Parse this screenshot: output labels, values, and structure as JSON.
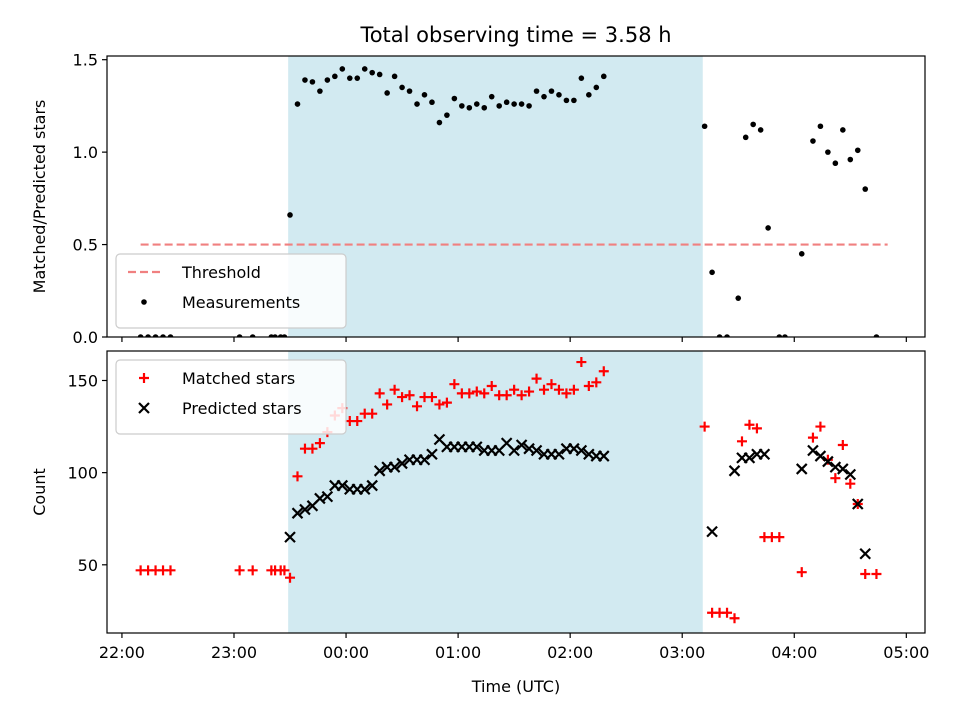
{
  "figure_title": "Total observing time = 3.58 h",
  "chart_data": [
    {
      "type": "scatter",
      "panel": "top",
      "title": "Total observing time = 3.58 h",
      "xlabel": "",
      "ylabel": "Matched/Predicted stars",
      "xlim": [
        "21:52",
        "05:10"
      ],
      "ylim": [
        0,
        1.52
      ],
      "yticks": [
        0.0,
        0.5,
        1.0,
        1.5
      ],
      "ytick_labels": [
        "0.0",
        "0.5",
        "1.0",
        "1.5"
      ],
      "xticks": [
        "22:00",
        "23:00",
        "00:00",
        "01:00",
        "02:00",
        "03:00",
        "04:00",
        "05:00"
      ],
      "shaded_interval": {
        "start": "23:29",
        "end": "03:11",
        "color": "#add8e6"
      },
      "threshold": {
        "name": "Threshold",
        "value": 0.5,
        "x_start": "22:10",
        "x_end": "04:50",
        "color": "#f08080"
      },
      "legend": {
        "position": "lower-left",
        "entries": [
          "Threshold",
          "Measurements"
        ]
      },
      "series": [
        {
          "name": "Measurements",
          "color": "#000000",
          "marker": "dot",
          "points": [
            [
              "22:10",
              0
            ],
            [
              "22:14",
              0
            ],
            [
              "22:18",
              0
            ],
            [
              "22:22",
              0
            ],
            [
              "22:26",
              0
            ],
            [
              "23:03",
              0
            ],
            [
              "23:10",
              0
            ],
            [
              "23:20",
              0
            ],
            [
              "23:22",
              0
            ],
            [
              "23:25",
              0
            ],
            [
              "23:27",
              0
            ],
            [
              "23:30",
              0.66
            ],
            [
              "23:34",
              1.26
            ],
            [
              "23:38",
              1.39
            ],
            [
              "23:42",
              1.38
            ],
            [
              "23:46",
              1.33
            ],
            [
              "23:50",
              1.39
            ],
            [
              "23:54",
              1.41
            ],
            [
              "23:58",
              1.45
            ],
            [
              "00:02",
              1.4
            ],
            [
              "00:06",
              1.4
            ],
            [
              "00:10",
              1.45
            ],
            [
              "00:14",
              1.43
            ],
            [
              "00:18",
              1.42
            ],
            [
              "00:22",
              1.32
            ],
            [
              "00:26",
              1.41
            ],
            [
              "00:30",
              1.35
            ],
            [
              "00:34",
              1.33
            ],
            [
              "00:38",
              1.26
            ],
            [
              "00:42",
              1.31
            ],
            [
              "00:46",
              1.27
            ],
            [
              "00:50",
              1.16
            ],
            [
              "00:54",
              1.2
            ],
            [
              "00:58",
              1.29
            ],
            [
              "01:02",
              1.25
            ],
            [
              "01:06",
              1.24
            ],
            [
              "01:10",
              1.26
            ],
            [
              "01:14",
              1.24
            ],
            [
              "01:18",
              1.3
            ],
            [
              "01:22",
              1.25
            ],
            [
              "01:26",
              1.27
            ],
            [
              "01:30",
              1.26
            ],
            [
              "01:34",
              1.26
            ],
            [
              "01:38",
              1.25
            ],
            [
              "01:42",
              1.33
            ],
            [
              "01:46",
              1.3
            ],
            [
              "01:50",
              1.33
            ],
            [
              "01:54",
              1.31
            ],
            [
              "01:58",
              1.28
            ],
            [
              "02:02",
              1.28
            ],
            [
              "02:06",
              1.4
            ],
            [
              "02:10",
              1.31
            ],
            [
              "02:14",
              1.35
            ],
            [
              "02:18",
              1.41
            ],
            [
              "03:12",
              1.14
            ],
            [
              "03:16",
              0.35
            ],
            [
              "03:20",
              0
            ],
            [
              "03:24",
              0
            ],
            [
              "03:30",
              0.21
            ],
            [
              "03:34",
              1.08
            ],
            [
              "03:38",
              1.15
            ],
            [
              "03:42",
              1.12
            ],
            [
              "03:46",
              0.59
            ],
            [
              "03:52",
              0
            ],
            [
              "03:55",
              0
            ],
            [
              "04:04",
              0.45
            ],
            [
              "04:10",
              1.06
            ],
            [
              "04:14",
              1.14
            ],
            [
              "04:18",
              1.0
            ],
            [
              "04:22",
              0.94
            ],
            [
              "04:26",
              1.12
            ],
            [
              "04:30",
              0.96
            ],
            [
              "04:34",
              1.01
            ],
            [
              "04:38",
              0.8
            ],
            [
              "04:44",
              0
            ]
          ]
        }
      ]
    },
    {
      "type": "scatter",
      "panel": "bottom",
      "title": "",
      "xlabel": "Time (UTC)",
      "ylabel": "Count",
      "xlim": [
        "21:52",
        "05:10"
      ],
      "ylim": [
        13,
        166
      ],
      "yticks": [
        50,
        100,
        150
      ],
      "ytick_labels": [
        "50",
        "100",
        "150"
      ],
      "xticks": [
        "22:00",
        "23:00",
        "00:00",
        "01:00",
        "02:00",
        "03:00",
        "04:00",
        "05:00"
      ],
      "xtick_labels": [
        "22:00",
        "23:00",
        "00:00",
        "01:00",
        "02:00",
        "03:00",
        "04:00",
        "05:00"
      ],
      "shaded_interval": {
        "start": "23:29",
        "end": "03:11",
        "color": "#add8e6"
      },
      "legend": {
        "position": "upper-left",
        "entries": [
          "Matched stars",
          "Predicted stars"
        ]
      },
      "series": [
        {
          "name": "Matched stars",
          "color": "#ff0000",
          "marker": "plus",
          "points": [
            [
              "22:10",
              47
            ],
            [
              "22:14",
              47
            ],
            [
              "22:18",
              47
            ],
            [
              "22:22",
              47
            ],
            [
              "22:26",
              47
            ],
            [
              "23:03",
              47
            ],
            [
              "23:10",
              47
            ],
            [
              "23:20",
              47
            ],
            [
              "23:22",
              47
            ],
            [
              "23:25",
              47
            ],
            [
              "23:27",
              47
            ],
            [
              "23:30",
              43
            ],
            [
              "23:34",
              98
            ],
            [
              "23:38",
              113
            ],
            [
              "23:42",
              113
            ],
            [
              "23:46",
              116
            ],
            [
              "23:50",
              122
            ],
            [
              "23:54",
              131
            ],
            [
              "23:58",
              135
            ],
            [
              "00:02",
              128
            ],
            [
              "00:06",
              128
            ],
            [
              "00:10",
              132
            ],
            [
              "00:14",
              132
            ],
            [
              "00:18",
              143
            ],
            [
              "00:22",
              137
            ],
            [
              "00:26",
              145
            ],
            [
              "00:30",
              141
            ],
            [
              "00:34",
              142
            ],
            [
              "00:38",
              136
            ],
            [
              "00:42",
              141
            ],
            [
              "00:46",
              141
            ],
            [
              "00:50",
              137
            ],
            [
              "00:54",
              138
            ],
            [
              "00:58",
              148
            ],
            [
              "01:02",
              143
            ],
            [
              "01:06",
              143
            ],
            [
              "01:10",
              144
            ],
            [
              "01:14",
              143
            ],
            [
              "01:18",
              147
            ],
            [
              "01:22",
              142
            ],
            [
              "01:26",
              142
            ],
            [
              "01:30",
              145
            ],
            [
              "01:34",
              142
            ],
            [
              "01:38",
              144
            ],
            [
              "01:42",
              151
            ],
            [
              "01:46",
              145
            ],
            [
              "01:50",
              148
            ],
            [
              "01:54",
              145
            ],
            [
              "01:58",
              143
            ],
            [
              "02:02",
              145
            ],
            [
              "02:06",
              160
            ],
            [
              "02:10",
              147
            ],
            [
              "02:14",
              149
            ],
            [
              "02:18",
              155
            ],
            [
              "03:12",
              125
            ],
            [
              "03:16",
              24
            ],
            [
              "03:20",
              24
            ],
            [
              "03:24",
              24
            ],
            [
              "03:28",
              21
            ],
            [
              "03:32",
              117
            ],
            [
              "03:36",
              126
            ],
            [
              "03:40",
              124
            ],
            [
              "03:44",
              65
            ],
            [
              "03:48",
              65
            ],
            [
              "03:52",
              65
            ],
            [
              "04:04",
              46
            ],
            [
              "04:10",
              119
            ],
            [
              "04:14",
              125
            ],
            [
              "04:18",
              107
            ],
            [
              "04:22",
              97
            ],
            [
              "04:26",
              115
            ],
            [
              "04:30",
              94
            ],
            [
              "04:34",
              83
            ],
            [
              "04:38",
              45
            ],
            [
              "04:44",
              45
            ]
          ]
        },
        {
          "name": "Predicted stars",
          "color": "#000000",
          "marker": "x",
          "points": [
            [
              "23:30",
              65
            ],
            [
              "23:34",
              78
            ],
            [
              "23:38",
              80
            ],
            [
              "23:42",
              82
            ],
            [
              "23:46",
              86
            ],
            [
              "23:50",
              87
            ],
            [
              "23:54",
              93
            ],
            [
              "23:58",
              93
            ],
            [
              "00:02",
              91
            ],
            [
              "00:06",
              91
            ],
            [
              "00:10",
              91
            ],
            [
              "00:14",
              93
            ],
            [
              "00:18",
              101
            ],
            [
              "00:22",
              103
            ],
            [
              "00:26",
              103
            ],
            [
              "00:30",
              105
            ],
            [
              "00:34",
              107
            ],
            [
              "00:38",
              107
            ],
            [
              "00:42",
              107
            ],
            [
              "00:46",
              110
            ],
            [
              "00:50",
              118
            ],
            [
              "00:54",
              114
            ],
            [
              "00:58",
              114
            ],
            [
              "01:02",
              114
            ],
            [
              "01:06",
              114
            ],
            [
              "01:10",
              114
            ],
            [
              "01:14",
              112
            ],
            [
              "01:18",
              112
            ],
            [
              "01:22",
              112
            ],
            [
              "01:26",
              116
            ],
            [
              "01:30",
              112
            ],
            [
              "01:34",
              115
            ],
            [
              "01:38",
              113
            ],
            [
              "01:42",
              112
            ],
            [
              "01:46",
              110
            ],
            [
              "01:50",
              110
            ],
            [
              "01:54",
              110
            ],
            [
              "01:58",
              113
            ],
            [
              "02:02",
              113
            ],
            [
              "02:06",
              112
            ],
            [
              "02:10",
              110
            ],
            [
              "02:14",
              109
            ],
            [
              "02:18",
              109
            ],
            [
              "03:16",
              68
            ],
            [
              "03:28",
              101
            ],
            [
              "03:32",
              108
            ],
            [
              "03:36",
              108
            ],
            [
              "03:40",
              110
            ],
            [
              "03:44",
              110
            ],
            [
              "04:04",
              102
            ],
            [
              "04:10",
              112
            ],
            [
              "04:14",
              109
            ],
            [
              "04:18",
              106
            ],
            [
              "04:22",
              103
            ],
            [
              "04:26",
              102
            ],
            [
              "04:30",
              99
            ],
            [
              "04:34",
              83
            ],
            [
              "04:38",
              56
            ]
          ]
        }
      ]
    }
  ]
}
